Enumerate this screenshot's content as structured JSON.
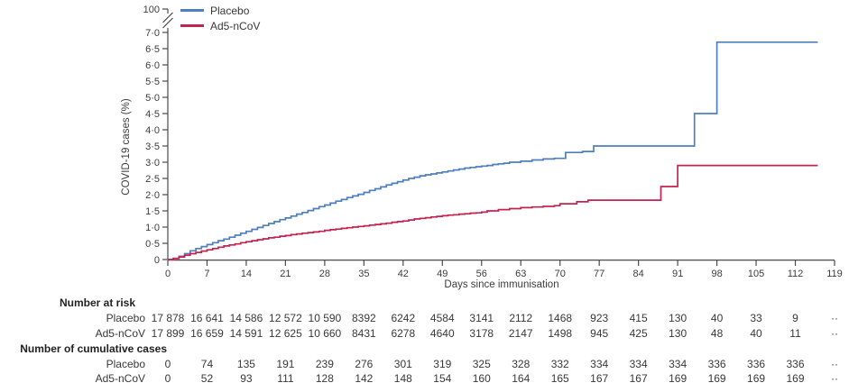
{
  "chart_data": {
    "type": "line",
    "subtype": "step",
    "title": "",
    "xlabel": "Days since immunisation",
    "ylabel": "COVID-19 cases (%)",
    "xlim": [
      0,
      119
    ],
    "ylim": [
      0,
      7
    ],
    "grid": false,
    "legend_position": "top-left",
    "y_axis_break": {
      "top_label": "100"
    },
    "x_ticks": [
      0,
      7,
      14,
      21,
      28,
      35,
      42,
      49,
      56,
      63,
      70,
      77,
      84,
      91,
      98,
      105,
      112,
      119
    ],
    "y_tick_labels": [
      "0",
      "0·5",
      "1·0",
      "1·5",
      "2·0",
      "2·5",
      "3·0",
      "3·5",
      "4·0",
      "4·5",
      "5·0",
      "5·5",
      "6·0",
      "6·5",
      "7·0"
    ],
    "legend": [
      {
        "label": "Placebo",
        "color": "#4d7fbe"
      },
      {
        "label": "Ad5-nCoV",
        "color": "#c5234f"
      }
    ],
    "curve_end_day": 116,
    "series": [
      {
        "name": "Placebo",
        "color": "#4d7fbe",
        "points": [
          [
            0,
            0
          ],
          [
            1,
            0.04
          ],
          [
            2,
            0.1
          ],
          [
            3,
            0.18
          ],
          [
            4,
            0.27
          ],
          [
            5,
            0.34
          ],
          [
            6,
            0.4
          ],
          [
            7,
            0.46
          ],
          [
            8,
            0.52
          ],
          [
            9,
            0.58
          ],
          [
            10,
            0.63
          ],
          [
            11,
            0.69
          ],
          [
            12,
            0.75
          ],
          [
            13,
            0.81
          ],
          [
            14,
            0.87
          ],
          [
            15,
            0.93
          ],
          [
            16,
            0.99
          ],
          [
            17,
            1.05
          ],
          [
            18,
            1.11
          ],
          [
            19,
            1.17
          ],
          [
            20,
            1.23
          ],
          [
            21,
            1.28
          ],
          [
            22,
            1.34
          ],
          [
            23,
            1.4
          ],
          [
            24,
            1.45
          ],
          [
            25,
            1.51
          ],
          [
            26,
            1.57
          ],
          [
            27,
            1.63
          ],
          [
            28,
            1.68
          ],
          [
            29,
            1.74
          ],
          [
            30,
            1.8
          ],
          [
            31,
            1.85
          ],
          [
            32,
            1.91
          ],
          [
            33,
            1.96
          ],
          [
            34,
            2.01
          ],
          [
            35,
            2.07
          ],
          [
            36,
            2.13
          ],
          [
            37,
            2.18
          ],
          [
            38,
            2.24
          ],
          [
            39,
            2.3
          ],
          [
            40,
            2.35
          ],
          [
            41,
            2.4
          ],
          [
            42,
            2.45
          ],
          [
            43,
            2.5
          ],
          [
            44,
            2.54
          ],
          [
            45,
            2.58
          ],
          [
            46,
            2.61
          ],
          [
            47,
            2.64
          ],
          [
            48,
            2.67
          ],
          [
            49,
            2.7
          ],
          [
            50,
            2.73
          ],
          [
            51,
            2.76
          ],
          [
            52,
            2.79
          ],
          [
            53,
            2.82
          ],
          [
            54,
            2.84
          ],
          [
            55,
            2.86
          ],
          [
            56,
            2.88
          ],
          [
            57,
            2.9
          ],
          [
            58,
            2.93
          ],
          [
            59,
            2.95
          ],
          [
            60,
            2.97
          ],
          [
            61,
            3.0
          ],
          [
            63,
            3.03
          ],
          [
            65,
            3.07
          ],
          [
            67,
            3.1
          ],
          [
            69,
            3.12
          ],
          [
            71,
            3.3
          ],
          [
            74,
            3.33
          ],
          [
            76,
            3.5
          ],
          [
            94,
            4.5
          ],
          [
            98,
            6.7
          ]
        ]
      },
      {
        "name": "Ad5-nCoV",
        "color": "#c5234f",
        "points": [
          [
            0,
            0
          ],
          [
            1,
            0.03
          ],
          [
            2,
            0.08
          ],
          [
            3,
            0.13
          ],
          [
            4,
            0.18
          ],
          [
            5,
            0.22
          ],
          [
            6,
            0.26
          ],
          [
            7,
            0.3
          ],
          [
            8,
            0.34
          ],
          [
            9,
            0.38
          ],
          [
            10,
            0.42
          ],
          [
            11,
            0.45
          ],
          [
            12,
            0.48
          ],
          [
            13,
            0.52
          ],
          [
            14,
            0.55
          ],
          [
            15,
            0.58
          ],
          [
            16,
            0.61
          ],
          [
            17,
            0.64
          ],
          [
            18,
            0.67
          ],
          [
            19,
            0.69
          ],
          [
            20,
            0.72
          ],
          [
            21,
            0.74
          ],
          [
            22,
            0.77
          ],
          [
            23,
            0.79
          ],
          [
            24,
            0.81
          ],
          [
            25,
            0.83
          ],
          [
            26,
            0.85
          ],
          [
            27,
            0.87
          ],
          [
            28,
            0.9
          ],
          [
            29,
            0.92
          ],
          [
            30,
            0.94
          ],
          [
            31,
            0.96
          ],
          [
            32,
            0.98
          ],
          [
            33,
            1.0
          ],
          [
            34,
            1.02
          ],
          [
            35,
            1.04
          ],
          [
            36,
            1.06
          ],
          [
            37,
            1.08
          ],
          [
            38,
            1.1
          ],
          [
            39,
            1.12
          ],
          [
            40,
            1.15
          ],
          [
            41,
            1.17
          ],
          [
            42,
            1.19
          ],
          [
            43,
            1.22
          ],
          [
            44,
            1.25
          ],
          [
            45,
            1.27
          ],
          [
            46,
            1.29
          ],
          [
            47,
            1.31
          ],
          [
            48,
            1.33
          ],
          [
            49,
            1.35
          ],
          [
            50,
            1.37
          ],
          [
            51,
            1.38
          ],
          [
            52,
            1.4
          ],
          [
            53,
            1.41
          ],
          [
            54,
            1.43
          ],
          [
            55,
            1.44
          ],
          [
            56,
            1.46
          ],
          [
            57,
            1.5
          ],
          [
            59,
            1.54
          ],
          [
            61,
            1.57
          ],
          [
            63,
            1.6
          ],
          [
            65,
            1.62
          ],
          [
            67,
            1.64
          ],
          [
            69,
            1.66
          ],
          [
            70,
            1.72
          ],
          [
            73,
            1.78
          ],
          [
            75,
            1.83
          ],
          [
            88,
            2.25
          ],
          [
            91,
            2.9
          ]
        ]
      }
    ]
  },
  "tables": {
    "number_at_risk": {
      "header": "Number at risk",
      "rows": [
        {
          "label": "Placebo",
          "values": [
            "17 878",
            "16 641",
            "14 586",
            "12 572",
            "10 590",
            "8392",
            "6242",
            "4584",
            "3141",
            "2112",
            "1468",
            "923",
            "415",
            "130",
            "40",
            "33",
            "9",
            "··"
          ]
        },
        {
          "label": "Ad5-nCoV",
          "values": [
            "17 899",
            "16 659",
            "14 591",
            "12 625",
            "10 660",
            "8431",
            "6278",
            "4640",
            "3178",
            "2147",
            "1498",
            "945",
            "425",
            "130",
            "48",
            "40",
            "11",
            "··"
          ]
        }
      ]
    },
    "cumulative_cases": {
      "header": "Number of cumulative cases",
      "rows": [
        {
          "label": "Placebo",
          "values": [
            "0",
            "74",
            "135",
            "191",
            "239",
            "276",
            "301",
            "319",
            "325",
            "328",
            "332",
            "334",
            "334",
            "334",
            "336",
            "336",
            "336",
            "··"
          ]
        },
        {
          "label": "Ad5-nCoV",
          "values": [
            "0",
            "52",
            "93",
            "111",
            "128",
            "142",
            "148",
            "154",
            "160",
            "164",
            "165",
            "167",
            "167",
            "169",
            "169",
            "169",
            "169",
            "··"
          ]
        }
      ]
    }
  }
}
